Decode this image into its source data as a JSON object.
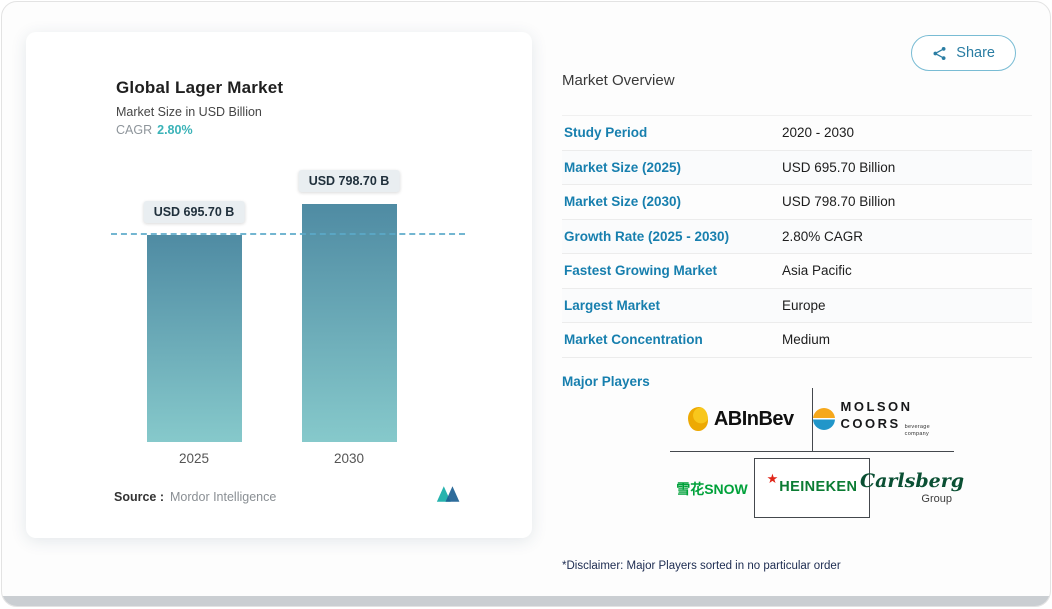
{
  "share": {
    "label": "Share"
  },
  "chart": {
    "title": "Global Lager Market",
    "subtitle": "Market Size in USD Billion",
    "cagr_label": "CAGR",
    "cagr_value": "2.80%",
    "source_label": "Source :",
    "source_value": "Mordor Intelligence"
  },
  "chart_data": {
    "type": "bar",
    "title": "Global Lager Market",
    "subtitle": "Market Size in USD Billion",
    "unit": "USD Billion",
    "categories": [
      "2025",
      "2030"
    ],
    "values": [
      695.7,
      798.7
    ],
    "value_labels": [
      "USD 695.70 B",
      "USD 798.70 B"
    ],
    "cagr": "2.80%",
    "threshold_line": 695.7,
    "ylim": [
      0,
      850
    ],
    "grid": false,
    "source": "Mordor Intelligence"
  },
  "overview": {
    "heading": "Market Overview",
    "rows": [
      {
        "label": "Study Period",
        "value": "2020 - 2030"
      },
      {
        "label": "Market Size (2025)",
        "value": "USD 695.70 Billion"
      },
      {
        "label": "Market Size (2030)",
        "value": "USD 798.70 Billion"
      },
      {
        "label": "Growth Rate (2025 - 2030)",
        "value": "2.80% CAGR"
      },
      {
        "label": "Fastest Growing Market",
        "value": "Asia Pacific"
      },
      {
        "label": "Largest Market",
        "value": "Europe"
      },
      {
        "label": "Market Concentration",
        "value": "Medium"
      }
    ],
    "major_players_label": "Major Players",
    "disclaimer": "*Disclaimer: Major Players sorted in no particular order"
  },
  "players": {
    "abinbev": {
      "text": "ABInBev"
    },
    "molson": {
      "line1": "MOLSON",
      "line2": "COORS",
      "tagline": "beverage company"
    },
    "snow": {
      "text": "雪花SNOW"
    },
    "heineken": {
      "text": "HEINEKEN"
    },
    "carlsberg": {
      "text": "Carlsberg",
      "subtext": "Group"
    }
  },
  "colors": {
    "label_blue": "#177fae",
    "cagr_teal": "#3bb3b8",
    "bar_top": "#4f8ba3",
    "bar_bottom": "#86c9cb",
    "dashed_line": "#5aa9c9",
    "share_border": "#79bcd4"
  }
}
